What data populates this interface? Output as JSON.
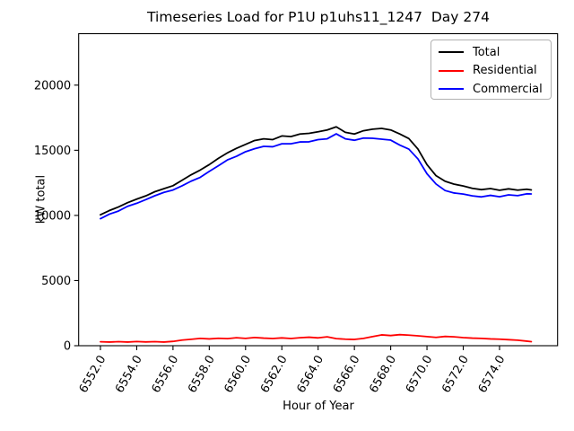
{
  "figure": {
    "title": "Timeseries Load for P1U p1uhs11_1247  Day 274",
    "xlabel": "Hour of Year",
    "ylabel": "kW total"
  },
  "legend": {
    "position": "upper right",
    "entries": [
      {
        "label": "Total",
        "color": "#000000"
      },
      {
        "label": "Residential",
        "color": "#ff0000"
      },
      {
        "label": "Commercial",
        "color": "#0000ff"
      }
    ]
  },
  "chart_data": {
    "type": "line",
    "title": "Timeseries Load for P1U p1uhs11_1247  Day 274",
    "xlabel": "Hour of Year",
    "ylabel": "kW total",
    "xlim": [
      6550.8,
      6577.2
    ],
    "ylim": [
      0,
      23950
    ],
    "grid": false,
    "legend_position": "upper right",
    "x_ticks": [
      6552,
      6554,
      6556,
      6558,
      6560,
      6562,
      6564,
      6566,
      6568,
      6570,
      6572,
      6574
    ],
    "x_tick_labels": [
      "6552.0",
      "6554.0",
      "6556.0",
      "6558.0",
      "6560.0",
      "6562.0",
      "6564.0",
      "6566.0",
      "6568.0",
      "6570.0",
      "6572.0",
      "6574.0"
    ],
    "y_ticks": [
      0,
      5000,
      10000,
      15000,
      20000
    ],
    "y_tick_labels": [
      "0",
      "5000",
      "10000",
      "15000",
      "20000"
    ],
    "x": [
      6552,
      6552.5,
      6553,
      6553.5,
      6554,
      6554.5,
      6555,
      6555.5,
      6556,
      6556.5,
      6557,
      6557.5,
      6558,
      6558.5,
      6559,
      6559.5,
      6560,
      6560.5,
      6561,
      6561.5,
      6562,
      6562.5,
      6563,
      6563.5,
      6564,
      6564.5,
      6565,
      6565.5,
      6566,
      6566.5,
      6567,
      6567.5,
      6568,
      6568.5,
      6569,
      6569.5,
      6570,
      6570.5,
      6571,
      6571.5,
      6572,
      6572.5,
      6573,
      6573.5,
      6574,
      6574.5,
      6575,
      6575.5,
      6575.75
    ],
    "series": [
      {
        "name": "Total",
        "color": "#000000",
        "values": [
          10050,
          10380,
          10650,
          10980,
          11250,
          11500,
          11820,
          12050,
          12280,
          12700,
          13120,
          13480,
          13900,
          14380,
          14800,
          15150,
          15450,
          15750,
          15880,
          15820,
          16100,
          16050,
          16250,
          16300,
          16420,
          16560,
          16800,
          16380,
          16250,
          16500,
          16620,
          16680,
          16560,
          16250,
          15900,
          15100,
          13900,
          13050,
          12620,
          12400,
          12260,
          12080,
          11980,
          12060,
          11930,
          12040,
          11940,
          12010,
          11960
        ]
      },
      {
        "name": "Residential",
        "color": "#ff0000",
        "values": [
          300,
          280,
          310,
          280,
          320,
          290,
          310,
          280,
          330,
          430,
          490,
          560,
          520,
          570,
          540,
          610,
          560,
          630,
          580,
          550,
          600,
          550,
          610,
          650,
          600,
          680,
          540,
          500,
          480,
          560,
          700,
          830,
          780,
          850,
          810,
          760,
          700,
          640,
          710,
          680,
          620,
          580,
          560,
          520,
          500,
          460,
          420,
          350,
          310
        ]
      },
      {
        "name": "Commercial",
        "color": "#0000ff",
        "values": [
          9750,
          10100,
          10340,
          10700,
          10930,
          11210,
          11510,
          11770,
          11950,
          12270,
          12630,
          12920,
          13380,
          13810,
          14260,
          14540,
          14890,
          15120,
          15300,
          15270,
          15500,
          15500,
          15640,
          15650,
          15820,
          15880,
          16260,
          15880,
          15770,
          15940,
          15920,
          15850,
          15780,
          15400,
          15090,
          14340,
          13200,
          12410,
          11910,
          11720,
          11640,
          11500,
          11420,
          11540,
          11430,
          11580,
          11520,
          11660,
          11650
        ]
      }
    ]
  }
}
